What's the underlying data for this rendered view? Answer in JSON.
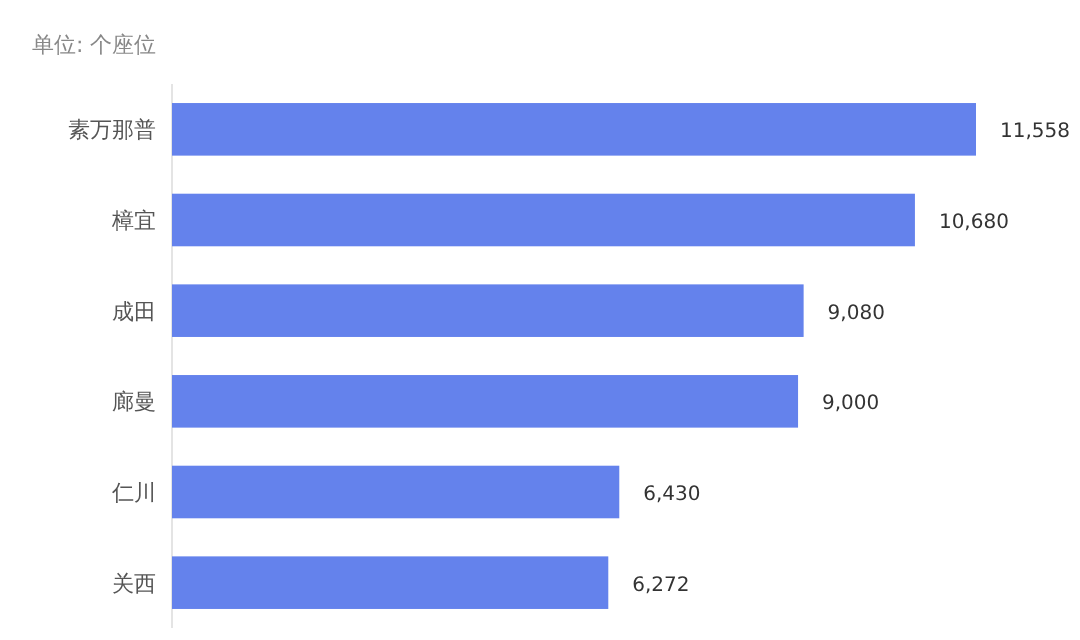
{
  "chart_data": {
    "type": "bar",
    "orientation": "horizontal",
    "subtitle": "单位: 个座位",
    "categories": [
      "素万那普",
      "樟宜",
      "成田",
      "廊曼",
      "仁川",
      "关西"
    ],
    "values": [
      11558,
      10680,
      9080,
      9000,
      6430,
      6272
    ],
    "value_labels": [
      "11,558",
      "10,680",
      "9,080",
      "9,000",
      "6,430",
      "6,272"
    ],
    "color": "#6482ec"
  }
}
